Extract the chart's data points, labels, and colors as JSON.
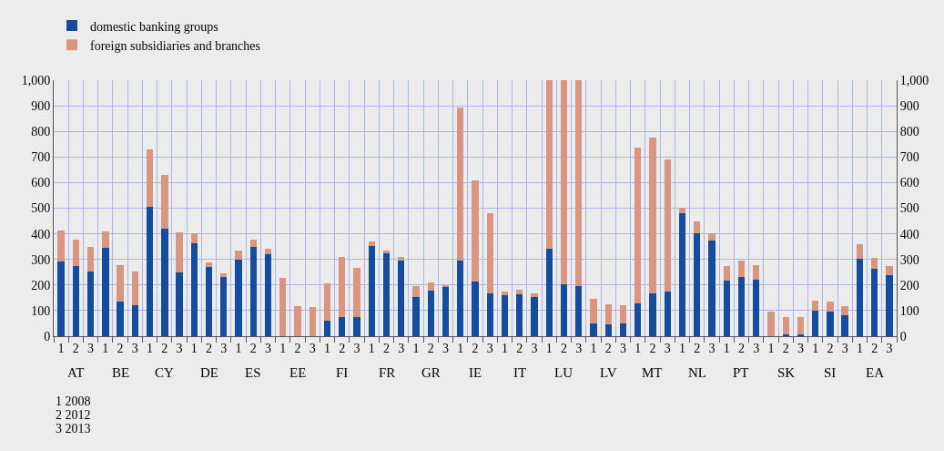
{
  "chart_data": {
    "type": "bar",
    "stacked": true,
    "categories": [
      "1",
      "2",
      "3",
      "1",
      "2",
      "3",
      "1",
      "2",
      "3",
      "1",
      "2",
      "3",
      "1",
      "2",
      "3",
      "1",
      "2",
      "3",
      "1",
      "2",
      "3",
      "1",
      "2",
      "3",
      "1",
      "2",
      "3",
      "1",
      "2",
      "3",
      "1",
      "2",
      "3",
      "1",
      "2",
      "3",
      "1",
      "2",
      "3",
      "1",
      "2",
      "3",
      "1",
      "2",
      "3",
      "1",
      "2",
      "3",
      "1",
      "2",
      "3",
      "1",
      "2",
      "3",
      "1",
      "2",
      "3"
    ],
    "series": [
      {
        "name": "domestic banking groups",
        "color": "#154c9e",
        "values": [
          292,
          275,
          251,
          345,
          136,
          122,
          505,
          419,
          248,
          362,
          270,
          232,
          300,
          347,
          319,
          0,
          0,
          0,
          61,
          75,
          75,
          354,
          323,
          297,
          153,
          178,
          195,
          297,
          212,
          168,
          159,
          165,
          153,
          341,
          202,
          197,
          49,
          46,
          49,
          129,
          167,
          173,
          482,
          401,
          372,
          218,
          231,
          219,
          0,
          6,
          6,
          101,
          97,
          81,
          304,
          264,
          239
        ]
      },
      {
        "name": "foreign subsidiaries and branches",
        "color": "#d8957f",
        "values": [
          122,
          103,
          96,
          63,
          141,
          129,
          225,
          211,
          159,
          41,
          17,
          12,
          33,
          29,
          21,
          227,
          118,
          113,
          146,
          234,
          193,
          15,
          10,
          11,
          42,
          32,
          6,
          598,
          396,
          313,
          15,
          17,
          15,
          659,
          798,
          803,
          96,
          78,
          73,
          609,
          610,
          518,
          20,
          47,
          29,
          57,
          66,
          57,
          95,
          70,
          69,
          39,
          39,
          38,
          54,
          43,
          36
        ]
      }
    ],
    "ylim": [
      0,
      1000
    ],
    "yticks": [
      0,
      {
        "value": 100,
        "label": "100"
      },
      {
        "value": 200,
        "label": "200"
      },
      {
        "value": 300,
        "label": "300"
      },
      {
        "value": 400,
        "label": "400"
      },
      {
        "value": 500,
        "label": "500"
      },
      {
        "value": 600,
        "label": "600"
      },
      {
        "value": 700,
        "label": "700"
      },
      {
        "value": 800,
        "label": "800"
      },
      {
        "value": 900,
        "label": "900"
      },
      {
        "value": 1000,
        "label": "1,000"
      }
    ],
    "y2lim": [
      0,
      1000
    ],
    "y2ticks": [
      0,
      {
        "value": 100,
        "label": "100"
      },
      {
        "value": 200,
        "label": "200"
      },
      {
        "value": 300,
        "label": "300"
      },
      {
        "value": 400,
        "label": "400"
      },
      {
        "value": 500,
        "label": "500"
      },
      {
        "value": 600,
        "label": "600"
      },
      {
        "value": 700,
        "label": "700"
      },
      {
        "value": 800,
        "label": "800"
      },
      {
        "value": 900,
        "label": "900"
      },
      {
        "value": 1000,
        "label": "1,000"
      }
    ],
    "grid": true,
    "legend": "top left",
    "annotations": [
      "AT",
      "BE",
      "CY",
      "DE",
      "ES",
      "EE",
      "FI",
      "FR",
      "GR",
      "IE",
      "IT",
      "LU",
      "LV",
      "MT",
      "NL",
      "PT",
      "SK",
      "SI",
      "EA",
      "1 2008",
      "2 2012",
      "3 2013"
    ]
  }
}
